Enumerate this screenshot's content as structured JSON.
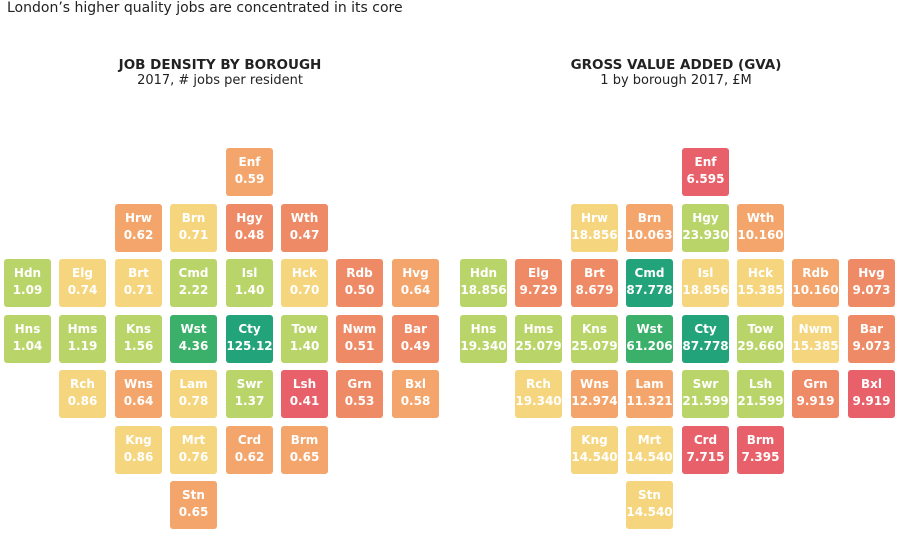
{
  "title": "London’s higher quality jobs are concentrated in its core",
  "colors": {
    "green_dark": "#22a37a",
    "green": "#3bb06a",
    "lime": "#b9d469",
    "yellow": "#f5d67e",
    "orange": "#f3a56c",
    "salmon": "#ee8a66",
    "red": "#e8606a"
  },
  "chart_data": [
    {
      "type": "heatmap",
      "title": "JOB DENSITY BY BOROUGH",
      "subtitle": "2017, # jobs per resident",
      "tiles": [
        {
          "code": "Enf",
          "value": "0.59",
          "row": 0,
          "col": 4,
          "color": "#f3a56c"
        },
        {
          "code": "Hrw",
          "value": "0.62",
          "row": 1,
          "col": 2,
          "color": "#f3a56c"
        },
        {
          "code": "Brn",
          "value": "0.71",
          "row": 1,
          "col": 3,
          "color": "#f5d67e"
        },
        {
          "code": "Hgy",
          "value": "0.48",
          "row": 1,
          "col": 4,
          "color": "#ee8a66"
        },
        {
          "code": "Wth",
          "value": "0.47",
          "row": 1,
          "col": 5,
          "color": "#ee8a66"
        },
        {
          "code": "Hdn",
          "value": "1.09",
          "row": 2,
          "col": 0,
          "color": "#b9d469"
        },
        {
          "code": "Elg",
          "value": "0.74",
          "row": 2,
          "col": 1,
          "color": "#f5d67e"
        },
        {
          "code": "Brt",
          "value": "0.71",
          "row": 2,
          "col": 2,
          "color": "#f5d67e"
        },
        {
          "code": "Cmd",
          "value": "2.22",
          "row": 2,
          "col": 3,
          "color": "#b9d469"
        },
        {
          "code": "Isl",
          "value": "1.40",
          "row": 2,
          "col": 4,
          "color": "#b9d469"
        },
        {
          "code": "Hck",
          "value": "0.70",
          "row": 2,
          "col": 5,
          "color": "#f5d67e"
        },
        {
          "code": "Rdb",
          "value": "0.50",
          "row": 2,
          "col": 6,
          "color": "#ee8a66"
        },
        {
          "code": "Hvg",
          "value": "0.64",
          "row": 2,
          "col": 7,
          "color": "#f3a56c"
        },
        {
          "code": "Hns",
          "value": "1.04",
          "row": 3,
          "col": 0,
          "color": "#b9d469"
        },
        {
          "code": "Hms",
          "value": "1.19",
          "row": 3,
          "col": 1,
          "color": "#b9d469"
        },
        {
          "code": "Kns",
          "value": "1.56",
          "row": 3,
          "col": 2,
          "color": "#b9d469"
        },
        {
          "code": "Wst",
          "value": "4.36",
          "row": 3,
          "col": 3,
          "color": "#3bb06a"
        },
        {
          "code": "Cty",
          "value": "125.12",
          "row": 3,
          "col": 4,
          "color": "#22a37a"
        },
        {
          "code": "Tow",
          "value": "1.40",
          "row": 3,
          "col": 5,
          "color": "#b9d469"
        },
        {
          "code": "Nwm",
          "value": "0.51",
          "row": 3,
          "col": 6,
          "color": "#ee8a66"
        },
        {
          "code": "Bar",
          "value": "0.49",
          "row": 3,
          "col": 7,
          "color": "#ee8a66"
        },
        {
          "code": "Rch",
          "value": "0.86",
          "row": 4,
          "col": 1,
          "color": "#f5d67e"
        },
        {
          "code": "Wns",
          "value": "0.64",
          "row": 4,
          "col": 2,
          "color": "#f3a56c"
        },
        {
          "code": "Lam",
          "value": "0.78",
          "row": 4,
          "col": 3,
          "color": "#f5d67e"
        },
        {
          "code": "Swr",
          "value": "1.37",
          "row": 4,
          "col": 4,
          "color": "#b9d469"
        },
        {
          "code": "Lsh",
          "value": "0.41",
          "row": 4,
          "col": 5,
          "color": "#e8606a"
        },
        {
          "code": "Grn",
          "value": "0.53",
          "row": 4,
          "col": 6,
          "color": "#ee8a66"
        },
        {
          "code": "Bxl",
          "value": "0.58",
          "row": 4,
          "col": 7,
          "color": "#f3a56c"
        },
        {
          "code": "Kng",
          "value": "0.86",
          "row": 5,
          "col": 2,
          "color": "#f5d67e"
        },
        {
          "code": "Mrt",
          "value": "0.76",
          "row": 5,
          "col": 3,
          "color": "#f5d67e"
        },
        {
          "code": "Crd",
          "value": "0.62",
          "row": 5,
          "col": 4,
          "color": "#f3a56c"
        },
        {
          "code": "Brm",
          "value": "0.65",
          "row": 5,
          "col": 5,
          "color": "#f3a56c"
        },
        {
          "code": "Stn",
          "value": "0.65",
          "row": 6,
          "col": 3,
          "color": "#f3a56c"
        }
      ]
    },
    {
      "type": "heatmap",
      "title": "GROSS VALUE ADDED (GVA)",
      "subtitle": "1 by borough 2017, £M",
      "tiles": [
        {
          "code": "Enf",
          "value": "6.595",
          "row": 0,
          "col": 4,
          "color": "#e8606a"
        },
        {
          "code": "Hrw",
          "value": "18.856",
          "row": 1,
          "col": 2,
          "color": "#f5d67e"
        },
        {
          "code": "Brn",
          "value": "10.063",
          "row": 1,
          "col": 3,
          "color": "#f3a56c"
        },
        {
          "code": "Hgy",
          "value": "23.930",
          "row": 1,
          "col": 4,
          "color": "#b9d469"
        },
        {
          "code": "Wth",
          "value": "10.160",
          "row": 1,
          "col": 5,
          "color": "#f3a56c"
        },
        {
          "code": "Hdn",
          "value": "18.856",
          "row": 2,
          "col": 0,
          "color": "#b9d469"
        },
        {
          "code": "Elg",
          "value": "9.729",
          "row": 2,
          "col": 1,
          "color": "#ee8a66"
        },
        {
          "code": "Brt",
          "value": "8.679",
          "row": 2,
          "col": 2,
          "color": "#ee8a66"
        },
        {
          "code": "Cmd",
          "value": "87.778",
          "row": 2,
          "col": 3,
          "color": "#22a37a"
        },
        {
          "code": "Isl",
          "value": "18.856",
          "row": 2,
          "col": 4,
          "color": "#f5d67e"
        },
        {
          "code": "Hck",
          "value": "15.385",
          "row": 2,
          "col": 5,
          "color": "#f5d67e"
        },
        {
          "code": "Rdb",
          "value": "10.160",
          "row": 2,
          "col": 6,
          "color": "#f3a56c"
        },
        {
          "code": "Hvg",
          "value": "9.073",
          "row": 2,
          "col": 7,
          "color": "#ee8a66"
        },
        {
          "code": "Hns",
          "value": "19.340",
          "row": 3,
          "col": 0,
          "color": "#b9d469"
        },
        {
          "code": "Hms",
          "value": "25.079",
          "row": 3,
          "col": 1,
          "color": "#b9d469"
        },
        {
          "code": "Kns",
          "value": "25.079",
          "row": 3,
          "col": 2,
          "color": "#b9d469"
        },
        {
          "code": "Wst",
          "value": "61.206",
          "row": 3,
          "col": 3,
          "color": "#3bb06a"
        },
        {
          "code": "Cty",
          "value": "87.778",
          "row": 3,
          "col": 4,
          "color": "#22a37a"
        },
        {
          "code": "Tow",
          "value": "29.660",
          "row": 3,
          "col": 5,
          "color": "#b9d469"
        },
        {
          "code": "Nwm",
          "value": "15.385",
          "row": 3,
          "col": 6,
          "color": "#f5d67e"
        },
        {
          "code": "Bar",
          "value": "9.073",
          "row": 3,
          "col": 7,
          "color": "#ee8a66"
        },
        {
          "code": "Rch",
          "value": "19.340",
          "row": 4,
          "col": 1,
          "color": "#f5d67e"
        },
        {
          "code": "Wns",
          "value": "12.974",
          "row": 4,
          "col": 2,
          "color": "#f3a56c"
        },
        {
          "code": "Lam",
          "value": "11.321",
          "row": 4,
          "col": 3,
          "color": "#f3a56c"
        },
        {
          "code": "Swr",
          "value": "21.599",
          "row": 4,
          "col": 4,
          "color": "#b9d469"
        },
        {
          "code": "Lsh",
          "value": "21.599",
          "row": 4,
          "col": 5,
          "color": "#b9d469"
        },
        {
          "code": "Grn",
          "value": "9.919",
          "row": 4,
          "col": 6,
          "color": "#ee8a66"
        },
        {
          "code": "Bxl",
          "value": "9.919",
          "row": 4,
          "col": 7,
          "color": "#e8606a"
        },
        {
          "code": "Kng",
          "value": "14.540",
          "row": 5,
          "col": 2,
          "color": "#f5d67e"
        },
        {
          "code": "Mrt",
          "value": "14.540",
          "row": 5,
          "col": 3,
          "color": "#f5d67e"
        },
        {
          "code": "Crd",
          "value": "7.715",
          "row": 5,
          "col": 4,
          "color": "#e8606a"
        },
        {
          "code": "Brm",
          "value": "7.395",
          "row": 5,
          "col": 5,
          "color": "#e8606a"
        },
        {
          "code": "Stn",
          "value": "14.540",
          "row": 6,
          "col": 3,
          "color": "#f5d67e"
        }
      ]
    }
  ]
}
